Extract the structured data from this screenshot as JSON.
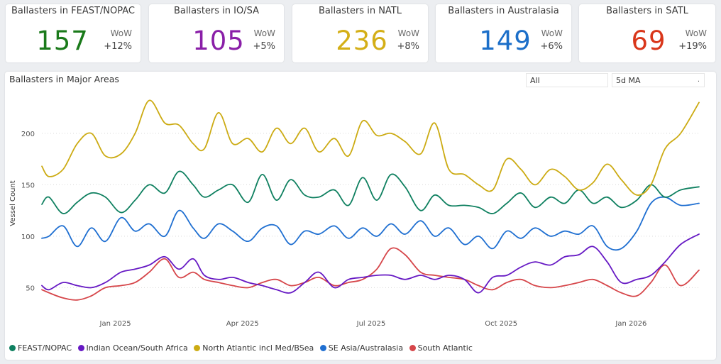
{
  "kpi_cards": [
    {
      "title": "Ballasters in FEAST/NOPAC",
      "value": "157",
      "wow_label": "WoW",
      "wow_value": "+12%",
      "color": "#1a7a1a"
    },
    {
      "title": "Ballasters in IO/SA",
      "value": "105",
      "wow_label": "WoW",
      "wow_value": "+5%",
      "color": "#8a1fa8"
    },
    {
      "title": "Ballasters in NATL",
      "value": "236",
      "wow_label": "WoW",
      "wow_value": "+8%",
      "color": "#d4af17"
    },
    {
      "title": "Ballasters in Australasia",
      "value": "149",
      "wow_label": "WoW",
      "wow_value": "+6%",
      "color": "#1c6fc9"
    },
    {
      "title": "Ballasters in SATL",
      "value": "69",
      "wow_label": "WoW",
      "wow_value": "+19%",
      "color": "#d9361a"
    }
  ],
  "panel": {
    "title": "Ballasters in Major Areas",
    "filter_label": "All",
    "ma_label": "5d MA",
    "caret": "."
  },
  "chart_data": {
    "type": "line",
    "title": "Ballasters in Major Areas",
    "xlabel": "",
    "ylabel": "Vessel Count",
    "ylim": [
      22,
      242
    ],
    "yticks": [
      50,
      100,
      150,
      200
    ],
    "x_range": [
      "2024-11-10",
      "2026-02-18"
    ],
    "x_ticks": [
      {
        "label": "Jan 2025",
        "date": "2025-01-01"
      },
      {
        "label": "Apr 2025",
        "date": "2025-04-01"
      },
      {
        "label": "Jul 2025",
        "date": "2025-07-01"
      },
      {
        "label": "Oct 2025",
        "date": "2025-10-01"
      },
      {
        "label": "Jan 2026",
        "date": "2026-01-01"
      }
    ],
    "grid": true,
    "legend": "bottom-left",
    "series": [
      {
        "name": "FEAST/NOPAC",
        "color": "#0f8060",
        "x": [
          "2024-11-10",
          "2024-11-15",
          "2024-11-25",
          "2024-12-05",
          "2024-12-15",
          "2024-12-25",
          "2025-01-05",
          "2025-01-15",
          "2025-01-25",
          "2025-02-05",
          "2025-02-15",
          "2025-02-25",
          "2025-03-05",
          "2025-03-15",
          "2025-03-25",
          "2025-04-05",
          "2025-04-15",
          "2025-04-25",
          "2025-05-05",
          "2025-05-15",
          "2025-05-25",
          "2025-06-05",
          "2025-06-15",
          "2025-06-25",
          "2025-07-05",
          "2025-07-15",
          "2025-07-25",
          "2025-08-05",
          "2025-08-15",
          "2025-08-25",
          "2025-09-05",
          "2025-09-15",
          "2025-09-25",
          "2025-10-05",
          "2025-10-15",
          "2025-10-25",
          "2025-11-05",
          "2025-11-15",
          "2025-11-25",
          "2025-12-05",
          "2025-12-15",
          "2025-12-25",
          "2026-01-05",
          "2026-01-15",
          "2026-01-25",
          "2026-02-05",
          "2026-02-18"
        ],
        "values": [
          131,
          138,
          122,
          133,
          142,
          138,
          123,
          135,
          150,
          142,
          163,
          150,
          138,
          145,
          150,
          133,
          160,
          135,
          155,
          140,
          138,
          145,
          130,
          157,
          135,
          160,
          148,
          125,
          140,
          130,
          130,
          128,
          122,
          132,
          142,
          128,
          138,
          132,
          145,
          132,
          138,
          128,
          135,
          150,
          138,
          145,
          148
        ]
      },
      {
        "name": "Indian Ocean/South Africa",
        "color": "#6619c4",
        "x": [
          "2024-11-10",
          "2024-11-15",
          "2024-11-25",
          "2024-12-05",
          "2024-12-15",
          "2024-12-25",
          "2025-01-05",
          "2025-01-15",
          "2025-01-25",
          "2025-02-05",
          "2025-02-15",
          "2025-02-25",
          "2025-03-05",
          "2025-03-15",
          "2025-03-25",
          "2025-04-05",
          "2025-04-15",
          "2025-04-25",
          "2025-05-05",
          "2025-05-15",
          "2025-05-25",
          "2025-06-05",
          "2025-06-15",
          "2025-06-25",
          "2025-07-05",
          "2025-07-15",
          "2025-07-25",
          "2025-08-05",
          "2025-08-15",
          "2025-08-25",
          "2025-09-05",
          "2025-09-15",
          "2025-09-25",
          "2025-10-05",
          "2025-10-15",
          "2025-10-25",
          "2025-11-05",
          "2025-11-15",
          "2025-11-25",
          "2025-12-05",
          "2025-12-15",
          "2025-12-25",
          "2026-01-05",
          "2026-01-15",
          "2026-01-25",
          "2026-02-05",
          "2026-02-18"
        ],
        "values": [
          52,
          48,
          55,
          52,
          50,
          55,
          65,
          68,
          72,
          80,
          68,
          78,
          62,
          58,
          60,
          55,
          52,
          48,
          45,
          55,
          65,
          50,
          58,
          60,
          62,
          62,
          58,
          62,
          58,
          62,
          58,
          45,
          60,
          62,
          70,
          75,
          72,
          80,
          82,
          90,
          75,
          55,
          58,
          62,
          75,
          92,
          102
        ]
      },
      {
        "name": "North Atlantic incl Med/BSea",
        "color": "#ccab13",
        "x": [
          "2024-11-10",
          "2024-11-15",
          "2024-11-25",
          "2024-12-05",
          "2024-12-15",
          "2024-12-25",
          "2025-01-05",
          "2025-01-15",
          "2025-01-25",
          "2025-02-05",
          "2025-02-15",
          "2025-02-25",
          "2025-03-05",
          "2025-03-15",
          "2025-03-25",
          "2025-04-05",
          "2025-04-15",
          "2025-04-25",
          "2025-05-05",
          "2025-05-15",
          "2025-05-25",
          "2025-06-05",
          "2025-06-15",
          "2025-06-25",
          "2025-07-05",
          "2025-07-15",
          "2025-07-25",
          "2025-08-05",
          "2025-08-15",
          "2025-08-25",
          "2025-09-05",
          "2025-09-15",
          "2025-09-25",
          "2025-10-05",
          "2025-10-15",
          "2025-10-25",
          "2025-11-05",
          "2025-11-15",
          "2025-11-25",
          "2025-12-05",
          "2025-12-15",
          "2025-12-25",
          "2026-01-05",
          "2026-01-15",
          "2026-01-25",
          "2026-02-05",
          "2026-02-18"
        ],
        "values": [
          168,
          158,
          165,
          190,
          200,
          178,
          180,
          200,
          232,
          210,
          208,
          190,
          185,
          220,
          190,
          195,
          182,
          205,
          190,
          205,
          182,
          195,
          178,
          212,
          198,
          200,
          192,
          180,
          210,
          165,
          160,
          150,
          145,
          175,
          165,
          150,
          165,
          158,
          145,
          152,
          170,
          155,
          140,
          150,
          185,
          200,
          230
        ]
      },
      {
        "name": "SE Asia/Australasia",
        "color": "#1f6fd1",
        "x": [
          "2024-11-10",
          "2024-11-15",
          "2024-11-25",
          "2024-12-05",
          "2024-12-15",
          "2024-12-25",
          "2025-01-05",
          "2025-01-15",
          "2025-01-25",
          "2025-02-05",
          "2025-02-15",
          "2025-02-25",
          "2025-03-05",
          "2025-03-15",
          "2025-03-25",
          "2025-04-05",
          "2025-04-15",
          "2025-04-25",
          "2025-05-05",
          "2025-05-15",
          "2025-05-25",
          "2025-06-05",
          "2025-06-15",
          "2025-06-25",
          "2025-07-05",
          "2025-07-15",
          "2025-07-25",
          "2025-08-05",
          "2025-08-15",
          "2025-08-25",
          "2025-09-05",
          "2025-09-15",
          "2025-09-25",
          "2025-10-05",
          "2025-10-15",
          "2025-10-25",
          "2025-11-05",
          "2025-11-15",
          "2025-11-25",
          "2025-12-05",
          "2025-12-15",
          "2025-12-25",
          "2026-01-05",
          "2026-01-15",
          "2026-01-25",
          "2026-02-05",
          "2026-02-18"
        ],
        "values": [
          98,
          100,
          110,
          90,
          108,
          95,
          118,
          105,
          112,
          100,
          125,
          108,
          98,
          112,
          105,
          95,
          108,
          110,
          92,
          105,
          102,
          110,
          98,
          108,
          100,
          112,
          102,
          115,
          100,
          108,
          92,
          100,
          88,
          105,
          98,
          108,
          100,
          105,
          102,
          110,
          90,
          88,
          105,
          132,
          138,
          130,
          132
        ]
      },
      {
        "name": "South Atlantic",
        "color": "#d6464a",
        "x": [
          "2024-11-10",
          "2024-11-15",
          "2024-11-25",
          "2024-12-05",
          "2024-12-15",
          "2024-12-25",
          "2025-01-05",
          "2025-01-15",
          "2025-01-25",
          "2025-02-05",
          "2025-02-15",
          "2025-02-25",
          "2025-03-05",
          "2025-03-15",
          "2025-03-25",
          "2025-04-05",
          "2025-04-15",
          "2025-04-25",
          "2025-05-05",
          "2025-05-15",
          "2025-05-25",
          "2025-06-05",
          "2025-06-15",
          "2025-06-25",
          "2025-07-05",
          "2025-07-15",
          "2025-07-25",
          "2025-08-05",
          "2025-08-15",
          "2025-08-25",
          "2025-09-05",
          "2025-09-15",
          "2025-09-25",
          "2025-10-05",
          "2025-10-15",
          "2025-10-25",
          "2025-11-05",
          "2025-11-15",
          "2025-11-25",
          "2025-12-05",
          "2025-12-15",
          "2025-12-25",
          "2026-01-05",
          "2026-01-15",
          "2026-01-25",
          "2026-02-05",
          "2026-02-18"
        ],
        "values": [
          48,
          45,
          40,
          38,
          42,
          50,
          52,
          55,
          65,
          78,
          60,
          65,
          58,
          55,
          52,
          50,
          55,
          58,
          52,
          55,
          60,
          52,
          55,
          58,
          68,
          88,
          82,
          65,
          62,
          60,
          58,
          52,
          48,
          55,
          58,
          52,
          50,
          52,
          55,
          58,
          52,
          45,
          42,
          55,
          72,
          52,
          67
        ]
      }
    ]
  }
}
